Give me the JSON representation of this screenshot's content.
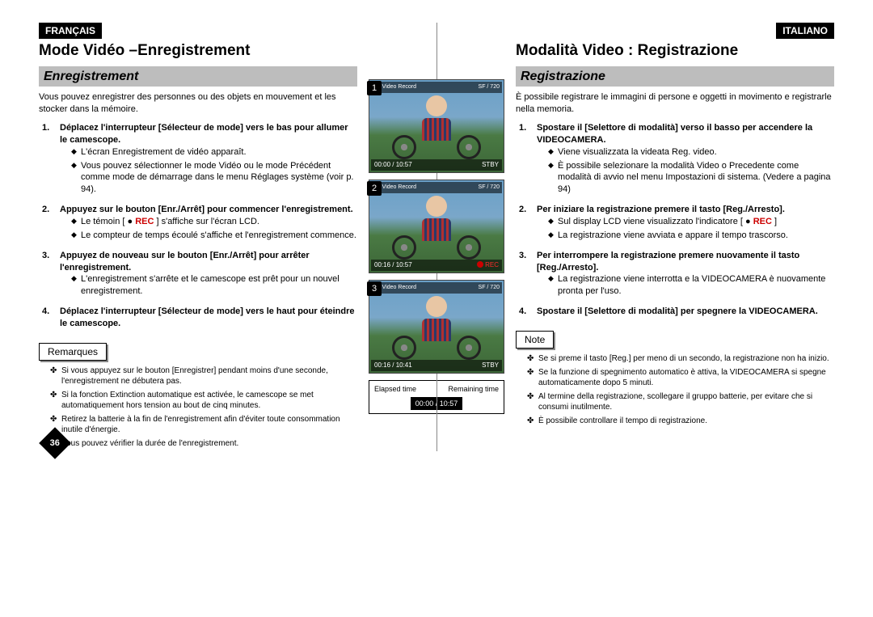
{
  "left": {
    "lang_badge": "FRANÇAIS",
    "main_title": "Mode Vidéo –Enregistrement",
    "section": "Enregistrement",
    "intro": "Vous pouvez enregistrer des personnes ou des objets en mouvement et les stocker dans la mémoire.",
    "steps": [
      {
        "title": "Déplacez l'interrupteur [Sélecteur de mode] vers le bas pour allumer le camescope.",
        "bullets": [
          "L'écran Enregistrement de vidéo apparaît.",
          "Vous pouvez sélectionner le mode Vidéo ou le mode Précédent comme mode de démarrage dans le menu Réglages système (voir p. 94)."
        ]
      },
      {
        "title": "Appuyez sur le bouton [Enr./Arrêt] pour commencer l'enregistrement.",
        "bullets": [
          "Le témoin [ ● REC ] s'affiche sur l'écran LCD.",
          "Le compteur de temps écoulé s'affiche et l'enregistrement commence."
        ],
        "rec_label": "REC"
      },
      {
        "title": "Appuyez de nouveau sur le bouton [Enr./Arrêt] pour arrêter l'enregistrement.",
        "bullets": [
          "L'enregistrement s'arrête et le camescope est prêt pour un nouvel enregistrement."
        ]
      },
      {
        "title": "Déplacez l'interrupteur [Sélecteur de mode] vers le haut pour éteindre le camescope.",
        "bullets": []
      }
    ],
    "notes_label": "Remarques",
    "notes": [
      "Si vous appuyez sur le bouton [Enregistrer] pendant moins d'une seconde, l'enregistrement ne débutera pas.",
      "Si la fonction Extinction automatique est activée, le camescope se met automatiquement hors tension au bout de cinq minutes.",
      "Retirez la batterie à la fin de l'enregistrement afin d'éviter toute consommation inutile d'énergie.",
      "Vous pouvez vérifier la durée de l'enregistrement."
    ]
  },
  "right": {
    "lang_badge": "ITALIANO",
    "main_title": "Modalità Video : Registrazione",
    "section": "Registrazione",
    "intro": "È possibile registrare le immagini di persone e oggetti in movimento e registrarle nella memoria.",
    "steps": [
      {
        "title": "Spostare il [Selettore di modalità] verso il basso per accendere la VIDEOCAMERA.",
        "bullets": [
          "Viene visualizzata la videata Reg. video.",
          "È possibile selezionare la modalità Video o Precedente come modalità di avvio nel menu Impostazioni di sistema. (Vedere a pagina 94)"
        ]
      },
      {
        "title": "Per iniziare la registrazione premere il tasto [Reg./Arresto].",
        "bullets": [
          "Sul display LCD viene visualizzato l'indicatore [ ● REC ]",
          "La registrazione viene avviata e appare il tempo trascorso."
        ],
        "rec_label": "REC"
      },
      {
        "title": "Per interrompere la registrazione premere nuovamente il tasto [Reg./Arresto].",
        "bullets": [
          "La registrazione viene interrotta e la VIDEOCAMERA è nuovamente pronta per l'uso."
        ]
      },
      {
        "title": "Spostare il [Selettore di modalità] per spegnere la VIDEOCAMERA.",
        "bullets": []
      }
    ],
    "notes_label": "Note",
    "notes": [
      "Se si preme il tasto [Reg.] per meno di un secondo, la registrazione non ha inizio.",
      "Se la funzione di spegnimento automatico è attiva, la VIDEOCAMERA si spegne automaticamente dopo 5 minuti.",
      "Al termine della registrazione, scollegare il gruppo batterie, per evitare che si consumi inutilmente.",
      "È possibile controllare il tempo di registrazione."
    ]
  },
  "center": {
    "shots": [
      {
        "num": "1",
        "top_label": "Video Record",
        "top_right": "SF / 720",
        "bottom_time": "00:00 / 10:57",
        "bottom_status": "STBY",
        "dot": false,
        "status_color": "#ffffff"
      },
      {
        "num": "2",
        "top_label": "Video Record",
        "top_right": "SF / 720",
        "bottom_time": "00:16 / 10:57",
        "bottom_status": "REC",
        "dot": true,
        "status_color": "#ff2a2a"
      },
      {
        "num": "3",
        "top_label": "Video Record",
        "top_right": "SF / 720",
        "bottom_time": "00:16 / 10:41",
        "bottom_status": "STBY",
        "dot": false,
        "status_color": "#ffffff"
      }
    ],
    "legend_elapsed": "Elapsed time",
    "legend_remaining": "Remaining time",
    "legend_time": "00:00 / 10:57"
  },
  "page_number": "36",
  "colors": {
    "badge_bg": "#000000",
    "section_bg": "#bdbdbd",
    "rec": "#cc0000"
  }
}
